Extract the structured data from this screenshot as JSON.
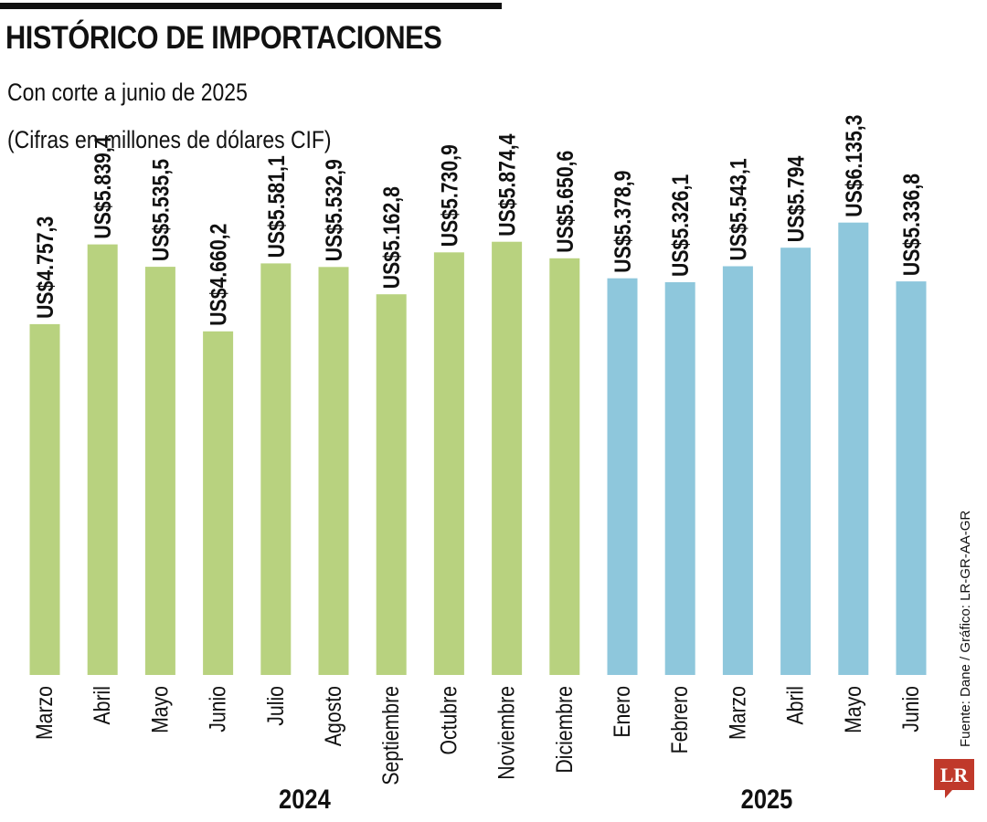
{
  "header": {
    "title": "HISTÓRICO DE IMPORTACIONES",
    "subtitle": "Con corte a junio de 2025",
    "units": "(Cifras en millones de dólares CIF)"
  },
  "source": "Fuente: Dane / Gráfico: LR-GR-AA-GR",
  "logo": {
    "text": "LR",
    "color": "#c0392b"
  },
  "colors": {
    "2024": "#b8d27f",
    "2025": "#8ec7dc"
  },
  "chart_data": {
    "type": "bar",
    "title": "HISTÓRICO DE IMPORTACIONES",
    "subtitle": "Con corte a junio de 2025",
    "ylabel": "",
    "xlabel": "",
    "ylim": [
      0,
      6800
    ],
    "grid": false,
    "legend": "none",
    "groups": [
      {
        "label": "2024",
        "start": 0,
        "end": 9
      },
      {
        "label": "2025",
        "start": 10,
        "end": 15
      }
    ],
    "categories": [
      "Marzo",
      "Abril",
      "Mayo",
      "Junio",
      "Julio",
      "Agosto",
      "Septiembre",
      "Octubre",
      "Noviembre",
      "Diciembre",
      "Enero",
      "Febrero",
      "Marzo",
      "Abril",
      "Mayo",
      "Junio"
    ],
    "values": [
      4757.3,
      5839.4,
      5535.5,
      4660.2,
      5581.1,
      5532.9,
      5162.8,
      5730.9,
      5874.4,
      5650.6,
      5378.9,
      5326.1,
      5543.1,
      5794,
      6135.3,
      5336.8
    ],
    "value_labels": [
      "US$4.757,3",
      "US$5.839,4",
      "US$5.535,5",
      "US$4.660,2",
      "US$5.581,1",
      "US$5.532,9",
      "US$5.162,8",
      "US$5.730,9",
      "US$5.874,4",
      "US$5.650,6",
      "US$5.378,9",
      "US$5.326,1",
      "US$5.543,1",
      "US$5.794",
      "US$6.135,3",
      "US$5.336,8"
    ]
  }
}
